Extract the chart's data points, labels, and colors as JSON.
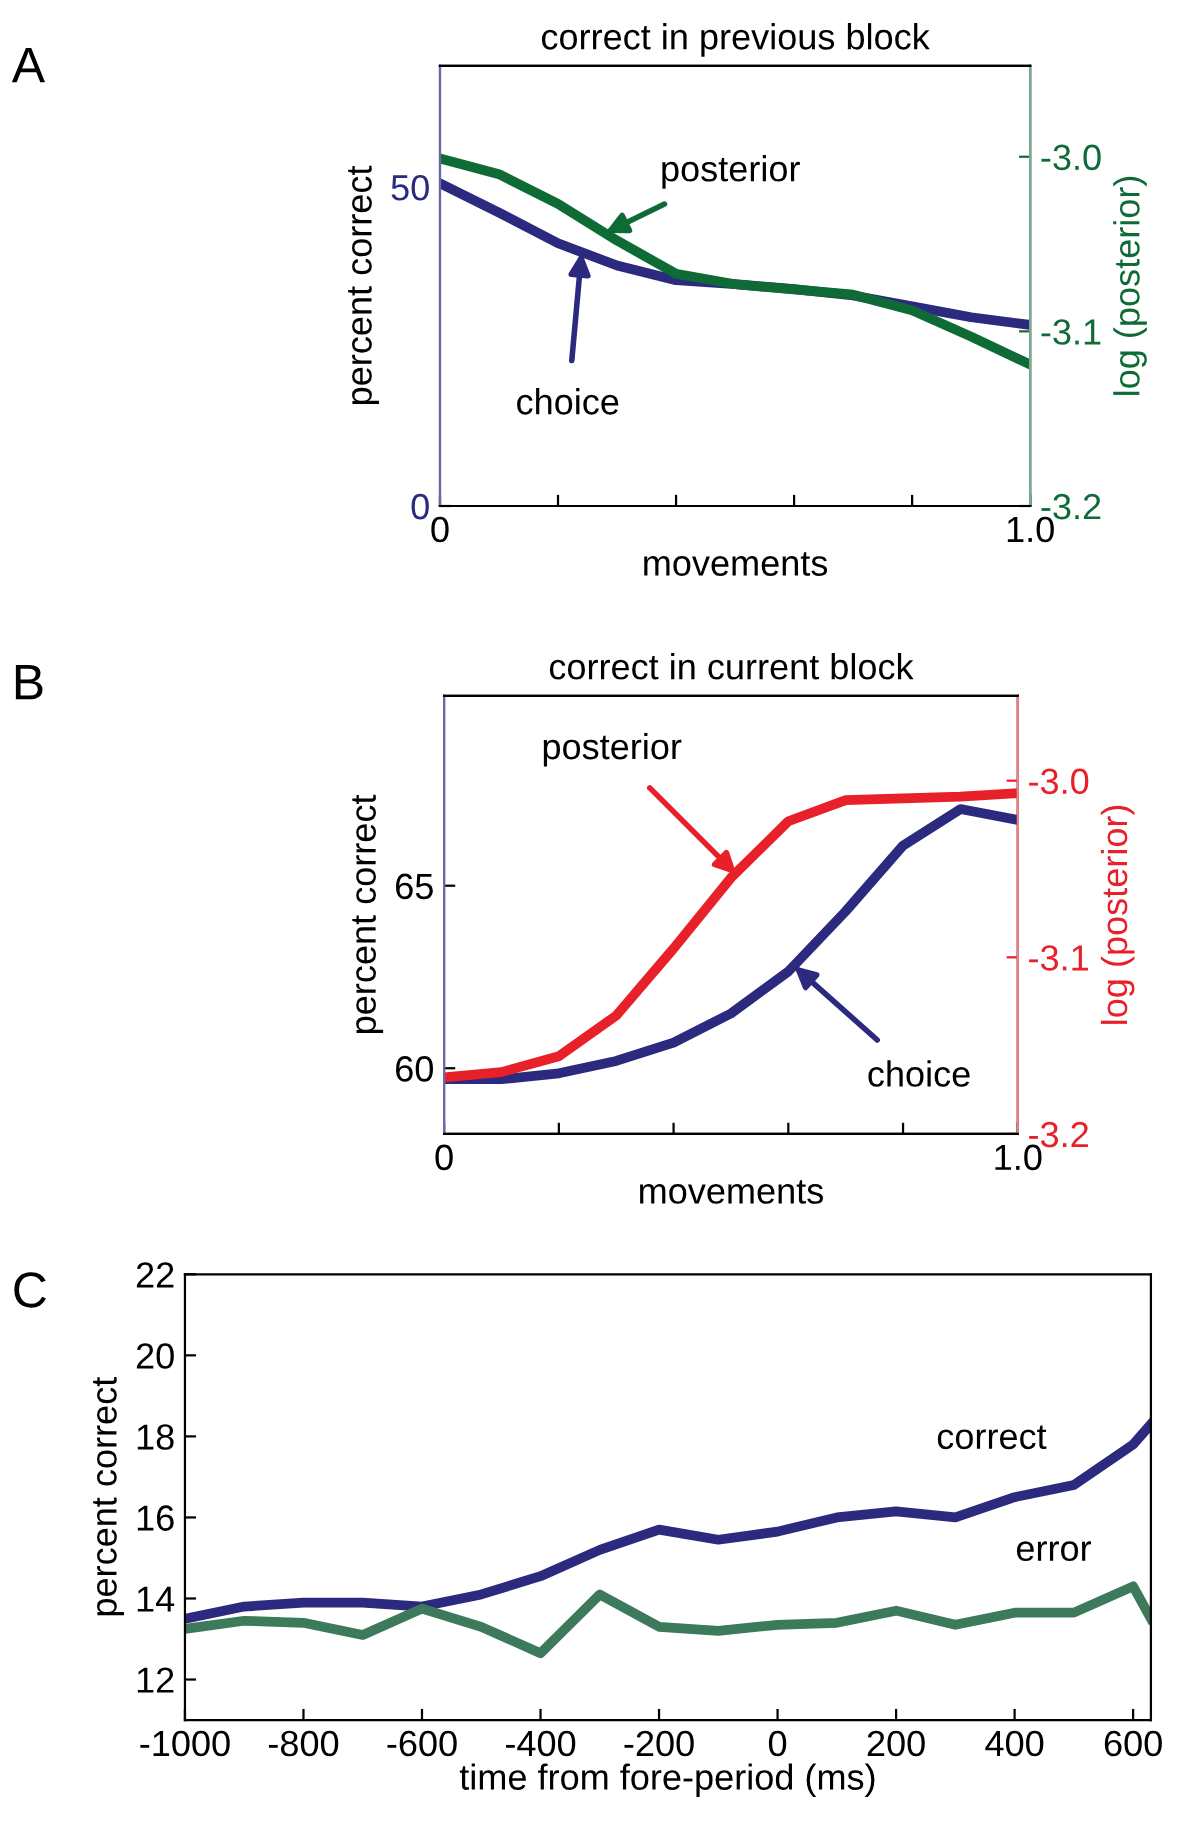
{
  "chart_data": [
    {
      "type": "line",
      "title": "correct in previous block",
      "xlabel": "movements",
      "ylabel": "percent correct",
      "y2label": "log (posterior)",
      "x": [
        0,
        0.1,
        0.2,
        0.3,
        0.4,
        0.5,
        0.6,
        0.7,
        0.8,
        0.9,
        1.0
      ],
      "series": [
        {
          "color": "#2b2a7e",
          "values": [
            50.6,
            46,
            41.2,
            37.7,
            35.4,
            34.8,
            34,
            33,
            31.3,
            29.6,
            28.4
          ]
        },
        {
          "color": "#0f6b35",
          "axis": "y2",
          "values": [
            -3.001,
            -3.01,
            -3.027,
            -3.048,
            -3.067,
            -3.073,
            -3.076,
            -3.079,
            -3.088,
            -3.103,
            -3.119
          ]
        }
      ],
      "xlim": [
        0,
        1.0
      ],
      "xticks": [
        0,
        {
          "value": 0.2,
          "label": null
        },
        {
          "value": 0.4,
          "label": null
        },
        {
          "value": 0.6,
          "label": null
        },
        {
          "value": 0.8,
          "label": null
        },
        {
          "value": 1.0,
          "label": "1.0"
        }
      ],
      "ylim": [
        0,
        69
      ],
      "yticks": [
        0,
        50
      ],
      "y2lim": [
        -3.2,
        -2.948
      ],
      "y2ticks": [
        {
          "value": -3.2,
          "label": "-3.2"
        },
        {
          "value": -3.1,
          "label": "-3.1"
        },
        {
          "value": -3.0,
          "label": "-3.0"
        }
      ],
      "annotations": [
        "A",
        {
          "text": "posterior",
          "x": 0.28,
          "y": 42.8
        },
        {
          "text": "choice",
          "x": 0.24,
          "y": 39.8
        }
      ],
      "line_style": "solid",
      "marker": "none",
      "grid": false,
      "legend": false
    },
    {
      "type": "line",
      "title": "correct in current block",
      "xlabel": "movements",
      "ylabel": "percent correct",
      "y2label": "log (posterior)",
      "x": [
        0,
        0.1,
        0.2,
        0.3,
        0.4,
        0.5,
        0.6,
        0.7,
        0.8,
        0.9,
        1.0
      ],
      "series": [
        {
          "color": "#2b2a7e",
          "values": [
            59.7,
            59.7,
            59.86,
            60.2,
            60.7,
            61.5,
            62.65,
            64.3,
            66.1,
            67.1,
            66.8
          ]
        },
        {
          "color": "#e8202a",
          "axis": "y2",
          "values": [
            -3.168,
            -3.165,
            -3.156,
            -3.133,
            -3.095,
            -3.055,
            -3.023,
            -3.011,
            -3.01,
            -3.009,
            -3.007
          ]
        }
      ],
      "xlim": [
        0,
        1.0
      ],
      "xticks": [
        0,
        {
          "value": 0.2,
          "label": null
        },
        {
          "value": 0.4,
          "label": null
        },
        {
          "value": 0.6,
          "label": null
        },
        {
          "value": 0.8,
          "label": null
        },
        {
          "value": 1.0,
          "label": "1.0"
        }
      ],
      "ylim": [
        58.2,
        70.2
      ],
      "yticks": [
        60,
        65
      ],
      "y2lim": [
        -3.2,
        -2.952
      ],
      "y2ticks": [
        {
          "value": -3.2,
          "label": "-3.2"
        },
        {
          "value": -3.1,
          "label": "-3.1"
        },
        {
          "value": -3.0,
          "label": "-3.0"
        }
      ],
      "annotations": [
        "B",
        {
          "text": "posterior",
          "x": 0.51,
          "y": 65.3
        },
        {
          "text": "choice",
          "x": 0.61,
          "y": 62.8
        }
      ],
      "line_style": "solid",
      "marker": "none",
      "grid": false,
      "legend": false
    },
    {
      "type": "line",
      "xlabel": "time from fore-period (ms)",
      "ylabel": "percent correct",
      "x": [
        -1000,
        -900,
        -800,
        -700,
        -600,
        -500,
        -400,
        -300,
        -200,
        -100,
        0,
        100,
        200,
        300,
        400,
        500,
        600,
        630
      ],
      "series": [
        {
          "name": "correct",
          "color": "#2b2a7e",
          "values": [
            13.5,
            13.8,
            13.9,
            13.9,
            13.8,
            14.1,
            14.55,
            15.2,
            15.7,
            15.45,
            15.65,
            16.0,
            16.15,
            16.0,
            16.5,
            16.8,
            17.8,
            18.3
          ]
        },
        {
          "name": "error",
          "color": "#3d7a5c",
          "values": [
            13.25,
            13.45,
            13.4,
            13.1,
            13.75,
            13.3,
            12.65,
            14.1,
            13.3,
            13.2,
            13.35,
            13.4,
            13.7,
            13.35,
            13.65,
            13.65,
            14.3,
            13.5
          ]
        }
      ],
      "xlim": [
        -1000,
        630
      ],
      "xticks": [
        {
          "value": -1000,
          "label": "-1000"
        },
        {
          "value": -800,
          "label": "-800"
        },
        {
          "value": -600,
          "label": "-600"
        },
        {
          "value": -400,
          "label": "-400"
        },
        {
          "value": -200,
          "label": "-200"
        },
        0,
        200,
        400,
        600
      ],
      "ylim": [
        11,
        22
      ],
      "yticks": [
        12,
        14,
        16,
        18,
        20,
        22
      ],
      "annotations": [
        "C"
      ],
      "line_style": "solid",
      "marker": "none",
      "grid": false,
      "legend": false
    }
  ]
}
